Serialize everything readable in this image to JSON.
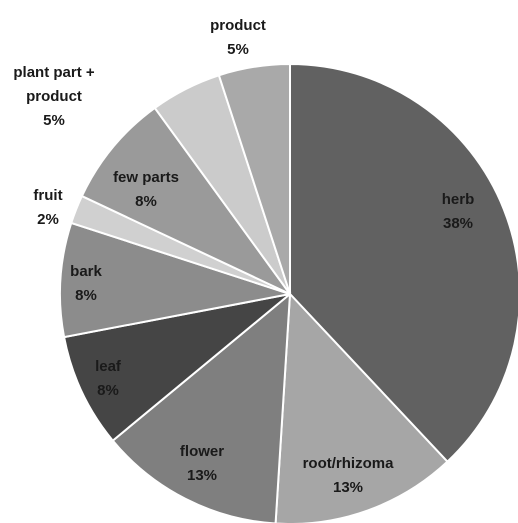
{
  "chart_data": {
    "type": "pie",
    "title": "",
    "slices": [
      {
        "name": "herb",
        "label": "38%",
        "value": 38,
        "color": "#616161"
      },
      {
        "name": "root/rhizoma",
        "label": "13%",
        "value": 13,
        "color": "#a6a6a6"
      },
      {
        "name": "flower",
        "label": "13%",
        "value": 13,
        "color": "#7f7f7f"
      },
      {
        "name": "leaf",
        "label": "8%",
        "value": 8,
        "color": "#454545"
      },
      {
        "name": "bark",
        "label": "8%",
        "value": 8,
        "color": "#8c8c8c"
      },
      {
        "name": "fruit",
        "label": "2%",
        "value": 2,
        "color": "#d0d0d0"
      },
      {
        "name": "few parts",
        "label": "8%",
        "value": 8,
        "color": "#9a9a9a"
      },
      {
        "name": "plant part + product",
        "label": "5%",
        "value": 5,
        "color": "#cbcbcb"
      },
      {
        "name": "product",
        "label": "5%",
        "value": 5,
        "color": "#a9a9a9"
      }
    ],
    "legend": "none"
  }
}
